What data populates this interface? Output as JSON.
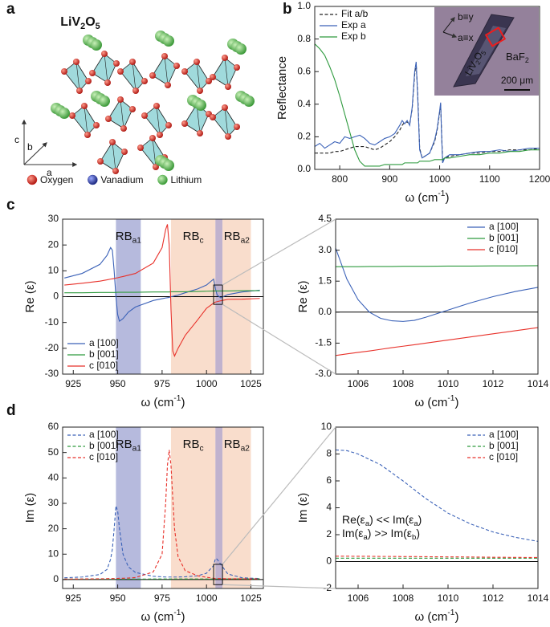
{
  "panel_labels": [
    "a",
    "b",
    "c",
    "d"
  ],
  "structure": {
    "title": [
      "LiV",
      {
        "sub": "2"
      },
      "O",
      {
        "sub": "5"
      }
    ],
    "axes": [
      "c",
      "b",
      "a"
    ],
    "legend": [
      {
        "name": "Oxygen",
        "color": "#d9302b"
      },
      {
        "name": "Vanadium",
        "color": "#2f3f9e"
      },
      {
        "name": "Lithium",
        "color": "#4fb548"
      }
    ]
  },
  "inset": {
    "axis_b": "b≡y",
    "axis_a": "a≡x",
    "crystal": [
      "LiV",
      {
        "sub": "2"
      },
      "O",
      {
        "sub": "5"
      }
    ],
    "substrate": [
      "BaF",
      {
        "sub": "2"
      }
    ],
    "scale": "200 μm"
  },
  "chart_data": [
    {
      "type": "line",
      "ylabel": "Reflectance",
      "xlabel": [
        "ω (cm",
        {
          "sup": "-1"
        },
        ")"
      ],
      "xlim": [
        750,
        1200
      ],
      "ylim": [
        0,
        1
      ],
      "xticks": [
        800,
        900,
        1000,
        1100,
        1200
      ],
      "yticks": [
        {
          "value": 0,
          "label": "0.0"
        },
        0.2,
        0.4,
        0.6,
        0.8,
        {
          "value": 1,
          "label": "1.0"
        }
      ],
      "legend": "upper left",
      "x": [
        750,
        760,
        770,
        780,
        790,
        800,
        810,
        820,
        830,
        840,
        850,
        860,
        870,
        880,
        890,
        900,
        910,
        920,
        925,
        930,
        935,
        940,
        945,
        950,
        953,
        956,
        960,
        965,
        970,
        980,
        990,
        995,
        1000,
        1002,
        1004,
        1006,
        1010,
        1020,
        1040,
        1060,
        1080,
        1100,
        1120,
        1140,
        1160,
        1180,
        1200
      ],
      "series": [
        {
          "name": "Fit a/b",
          "color": "#222222",
          "linestyle": "dashed",
          "values": [
            0.1,
            0.1,
            0.1,
            0.1,
            0.11,
            0.11,
            0.12,
            0.13,
            0.14,
            0.14,
            0.14,
            0.13,
            0.12,
            0.13,
            0.15,
            0.17,
            0.2,
            0.24,
            0.27,
            0.29,
            0.29,
            0.28,
            0.37,
            0.58,
            0.65,
            0.47,
            0.13,
            0.07,
            0.08,
            0.1,
            0.17,
            0.24,
            0.35,
            0.4,
            0.22,
            0.05,
            0.07,
            0.08,
            0.09,
            0.1,
            0.1,
            0.11,
            0.11,
            0.12,
            0.12,
            0.12,
            0.13
          ]
        },
        {
          "name": "Exp a",
          "color": "#3b62b8",
          "linestyle": "solid",
          "values": [
            0.14,
            0.16,
            0.13,
            0.15,
            0.17,
            0.16,
            0.2,
            0.19,
            0.2,
            0.21,
            0.19,
            0.16,
            0.15,
            0.17,
            0.19,
            0.2,
            0.22,
            0.27,
            0.3,
            0.28,
            0.3,
            0.27,
            0.38,
            0.6,
            0.66,
            0.45,
            0.12,
            0.07,
            0.08,
            0.1,
            0.18,
            0.25,
            0.36,
            0.41,
            0.2,
            0.04,
            0.07,
            0.09,
            0.09,
            0.1,
            0.11,
            0.11,
            0.12,
            0.11,
            0.12,
            0.13,
            0.13
          ]
        },
        {
          "name": "Exp b",
          "color": "#2e9a3e",
          "linestyle": "solid",
          "values": [
            0.77,
            0.74,
            0.7,
            0.63,
            0.55,
            0.45,
            0.34,
            0.23,
            0.12,
            0.05,
            0.02,
            0.02,
            0.02,
            0.02,
            0.03,
            0.03,
            0.03,
            0.03,
            0.03,
            0.04,
            0.04,
            0.04,
            0.04,
            0.04,
            0.04,
            0.04,
            0.05,
            0.05,
            0.05,
            0.05,
            0.06,
            0.06,
            0.06,
            0.06,
            0.06,
            0.06,
            0.07,
            0.07,
            0.08,
            0.09,
            0.09,
            0.1,
            0.1,
            0.11,
            0.11,
            0.12,
            0.12
          ]
        }
      ]
    },
    {
      "type": "line",
      "ylabel": "Re (ε)",
      "xlabel": [
        "ω (cm",
        {
          "sup": "-1"
        },
        ")"
      ],
      "xlim": [
        919,
        1032
      ],
      "ylim": [
        -30,
        30
      ],
      "xticks": [
        925,
        950,
        975,
        1000,
        1025
      ],
      "yticks": [
        -30,
        -20,
        -10,
        0,
        10,
        20,
        30
      ],
      "legend": "lower left",
      "reference_line": 0,
      "bands": [
        {
          "from": 949,
          "to": 963,
          "color": "#aeb3d9",
          "label": [
            "RB",
            {
              "sub": "a1"
            }
          ]
        },
        {
          "from": 980,
          "to": 1005,
          "color": "#f8d9c6",
          "label": [
            "RB",
            {
              "sub": "c"
            }
          ]
        },
        {
          "from": 1005,
          "to": 1009,
          "color": "#b9aac9"
        },
        {
          "from": 1009,
          "to": 1025,
          "color": "#f8d9c6",
          "label": [
            "RB",
            {
              "sub": "a2"
            }
          ]
        }
      ],
      "zoom_box": {
        "x": [
          1004,
          1009
        ],
        "y": [
          -3,
          4.5
        ]
      },
      "x": [
        920,
        930,
        940,
        944,
        946,
        947,
        948,
        949,
        950,
        951,
        953,
        956,
        960,
        970,
        975,
        977,
        978,
        979,
        980,
        981,
        982,
        984,
        988,
        995,
        1000,
        1004,
        1005,
        1006,
        1008,
        1012,
        1020,
        1030
      ],
      "series": [
        {
          "name": "a [100]",
          "color": "#3b62b8",
          "linestyle": "solid",
          "values": [
            7.2,
            9,
            12.5,
            16,
            19,
            18,
            10,
            0,
            -7,
            -9.5,
            -8.5,
            -6,
            -4,
            -1.5,
            -0.8,
            -0.5,
            -0.4,
            -0.3,
            0,
            0.1,
            0.3,
            0.6,
            1.5,
            3,
            4.5,
            6.8,
            3.1,
            0.6,
            -0.45,
            0.8,
            1.8,
            2.5
          ]
        },
        {
          "name": "b [001]",
          "color": "#2e9a3e",
          "linestyle": "solid",
          "values": [
            1.5,
            1.5,
            1.6,
            1.6,
            1.6,
            1.6,
            1.6,
            1.6,
            1.7,
            1.7,
            1.7,
            1.7,
            1.7,
            1.8,
            1.8,
            1.8,
            1.8,
            1.8,
            1.9,
            1.9,
            1.9,
            1.9,
            1.9,
            2,
            2.1,
            2.2,
            2.2,
            2.2,
            2.2,
            2.2,
            2.3,
            2.3
          ]
        },
        {
          "name": "c [010]",
          "color": "#e8312a",
          "linestyle": "solid",
          "values": [
            4.5,
            5.2,
            6,
            6.5,
            6.8,
            6.9,
            7,
            7.2,
            7.3,
            7.5,
            7.8,
            8.3,
            9,
            13,
            19,
            26,
            28,
            20,
            -5,
            -21,
            -23,
            -20,
            -15,
            -9,
            -4.5,
            -2.5,
            -2.1,
            -1.95,
            -1.6,
            -1.05,
            -1,
            -0.7
          ]
        }
      ]
    },
    {
      "type": "line",
      "ylabel": "Re (ε)",
      "xlabel": [
        "ω (cm",
        {
          "sup": "-1"
        },
        ")"
      ],
      "xlim": [
        1005,
        1014
      ],
      "ylim": [
        -3,
        4.5
      ],
      "xticks": [
        1006,
        1008,
        1010,
        1012,
        1014
      ],
      "yticks": [
        {
          "value": -3,
          "label": "-3.0"
        },
        {
          "value": -1.5,
          "label": "-1.5"
        },
        {
          "value": 0,
          "label": "0.0"
        },
        {
          "value": 1.5,
          "label": "1.5"
        },
        {
          "value": 3,
          "label": "3.0"
        },
        {
          "value": 4.5,
          "label": "4.5"
        }
      ],
      "legend": "upper right",
      "reference_line": 0,
      "x": [
        1005,
        1005.5,
        1006,
        1006.5,
        1007,
        1007.5,
        1008,
        1008.5,
        1009,
        1010,
        1011,
        1012,
        1013,
        1014
      ],
      "series": [
        {
          "name": "a [100]",
          "color": "#3b62b8",
          "linestyle": "solid",
          "values": [
            3.1,
            1.6,
            0.6,
            0,
            -0.3,
            -0.42,
            -0.45,
            -0.4,
            -0.25,
            0.1,
            0.45,
            0.75,
            1,
            1.2
          ]
        },
        {
          "name": "b [001]",
          "color": "#2e9a3e",
          "linestyle": "solid",
          "values": [
            2.2,
            2.2,
            2.2,
            2.21,
            2.21,
            2.21,
            2.22,
            2.22,
            2.22,
            2.23,
            2.23,
            2.24,
            2.24,
            2.25
          ]
        },
        {
          "name": "c [010]",
          "color": "#e8312a",
          "linestyle": "solid",
          "values": [
            -2.1,
            -2.02,
            -1.95,
            -1.88,
            -1.8,
            -1.72,
            -1.65,
            -1.58,
            -1.5,
            -1.35,
            -1.2,
            -1.05,
            -0.9,
            -0.75
          ]
        }
      ]
    },
    {
      "type": "line",
      "ylabel": "Im (ε)",
      "xlabel": [
        "ω (cm",
        {
          "sup": "-1"
        },
        ")"
      ],
      "xlim": [
        919,
        1032
      ],
      "ylim": [
        -3.5,
        60
      ],
      "xticks": [
        925,
        950,
        975,
        1000,
        1025
      ],
      "yticks": [
        0,
        10,
        20,
        30,
        40,
        50,
        60
      ],
      "legend": "upper left",
      "reference_line": 0,
      "bands": [
        {
          "from": 949,
          "to": 963,
          "color": "#aeb3d9",
          "label": [
            "RB",
            {
              "sub": "a1"
            }
          ]
        },
        {
          "from": 980,
          "to": 1005,
          "color": "#f8d9c6",
          "label": [
            "RB",
            {
              "sub": "c"
            }
          ]
        },
        {
          "from": 1005,
          "to": 1009,
          "color": "#b9aac9"
        },
        {
          "from": 1009,
          "to": 1025,
          "color": "#f8d9c6",
          "label": [
            "RB",
            {
              "sub": "a2"
            }
          ]
        }
      ],
      "zoom_box": {
        "x": [
          1004,
          1009
        ],
        "y": [
          -2,
          6
        ]
      },
      "x": [
        920,
        930,
        940,
        944,
        946,
        947,
        948,
        949,
        950,
        951,
        953,
        956,
        960,
        970,
        975,
        977,
        978,
        979,
        980,
        981,
        982,
        984,
        988,
        995,
        1000,
        1004,
        1005,
        1006,
        1008,
        1012,
        1020,
        1030
      ],
      "series": [
        {
          "name": "a [100]",
          "color": "#3b62b8",
          "linestyle": "dashed",
          "values": [
            0.7,
            1,
            2,
            4,
            8,
            12,
            20,
            29,
            27,
            20,
            10,
            5,
            2.8,
            1.3,
            1.1,
            1,
            1,
            1,
            1,
            1,
            1,
            1,
            1.1,
            1.5,
            2.5,
            5.5,
            8.3,
            8,
            6,
            2.2,
            0.7,
            0.4
          ]
        },
        {
          "name": "b [001]",
          "color": "#2e9a3e",
          "linestyle": "dashed",
          "values": [
            0.2,
            0.2,
            0.2,
            0.2,
            0.2,
            0.2,
            0.2,
            0.2,
            0.2,
            0.2,
            0.2,
            0.2,
            0.2,
            0.22,
            0.22,
            0.22,
            0.22,
            0.22,
            0.23,
            0.23,
            0.23,
            0.23,
            0.23,
            0.24,
            0.24,
            0.25,
            0.25,
            0.25,
            0.25,
            0.25,
            0.26,
            0.26
          ]
        },
        {
          "name": "c [010]",
          "color": "#e8312a",
          "linestyle": "dashed",
          "values": [
            0.2,
            0.25,
            0.3,
            0.35,
            0.4,
            0.4,
            0.4,
            0.45,
            0.45,
            0.5,
            0.5,
            0.6,
            0.8,
            3,
            10,
            30,
            45,
            51,
            45,
            32,
            20,
            9,
            3.5,
            1.5,
            0.9,
            0.5,
            0.4,
            0.4,
            0.38,
            0.32,
            0.3,
            0.25
          ]
        }
      ]
    },
    {
      "type": "line",
      "ylabel": "Im (ε)",
      "xlabel": [
        "ω (cm",
        {
          "sup": "-1"
        },
        ")"
      ],
      "xlim": [
        1005,
        1014
      ],
      "ylim": [
        -2,
        10
      ],
      "xticks": [
        1006,
        1008,
        1010,
        1012,
        1014
      ],
      "yticks": [
        -2,
        0,
        2,
        4,
        6,
        8,
        10
      ],
      "legend": "upper right",
      "reference_line": 0,
      "annotations": [
        [
          "Re(ε",
          {
            "sub": "a"
          },
          ") << Im(ε",
          {
            "sub": "a"
          },
          ")"
        ],
        [
          "Im(ε",
          {
            "sub": "a"
          },
          ") >> Im(ε",
          {
            "sub": "b"
          },
          ")"
        ]
      ],
      "x": [
        1005,
        1005.5,
        1006,
        1006.5,
        1007,
        1007.5,
        1008,
        1008.5,
        1009,
        1010,
        1011,
        1012,
        1013,
        1014
      ],
      "series": [
        {
          "name": "a [100]",
          "color": "#3b62b8",
          "linestyle": "dashed",
          "values": [
            8.3,
            8.25,
            8,
            7.6,
            7.2,
            6.6,
            6,
            5.35,
            4.7,
            3.6,
            2.8,
            2.2,
            1.8,
            1.5
          ]
        },
        {
          "name": "b [001]",
          "color": "#2e9a3e",
          "linestyle": "dashed",
          "values": [
            0.25,
            0.25,
            0.25,
            0.25,
            0.25,
            0.25,
            0.25,
            0.25,
            0.25,
            0.25,
            0.25,
            0.25,
            0.25,
            0.25
          ]
        },
        {
          "name": "c [010]",
          "color": "#e8312a",
          "linestyle": "dashed",
          "values": [
            0.4,
            0.4,
            0.39,
            0.39,
            0.38,
            0.38,
            0.37,
            0.37,
            0.36,
            0.35,
            0.34,
            0.32,
            0.31,
            0.3
          ]
        }
      ]
    }
  ]
}
